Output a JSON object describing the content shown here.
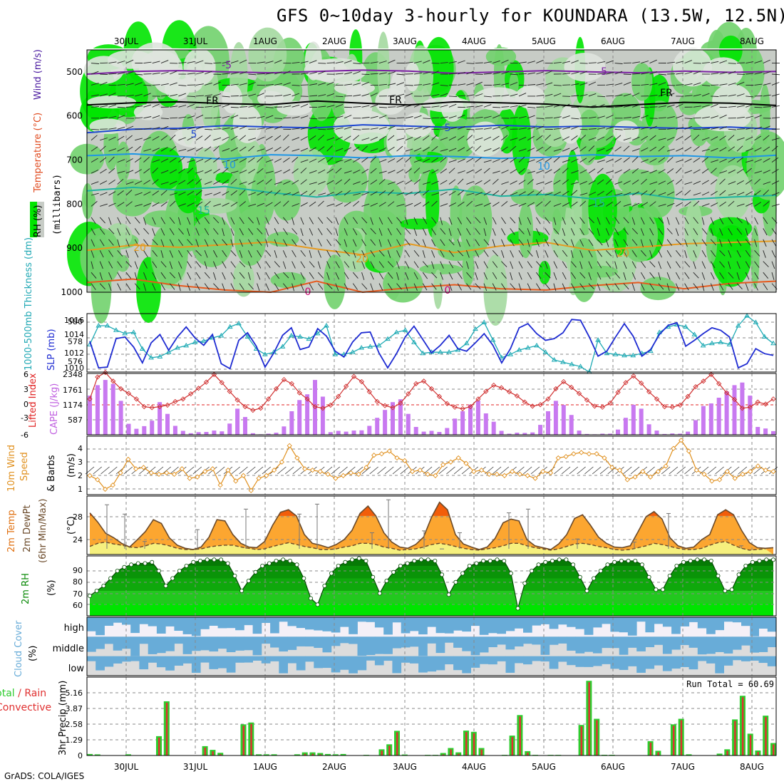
{
  "title": "GFS 0~10day 3-hourly for KOUNDARA (13.5W, 12.5N)",
  "footer": "GrADS: COLA/IGES",
  "chart_data": {
    "type": "meteogram",
    "dates": [
      "30JUL",
      "31JUL",
      "1AUG",
      "2AUG",
      "3AUG",
      "4AUG",
      "5AUG",
      "6AUG",
      "7AUG",
      "8AUG"
    ],
    "panels": [
      {
        "id": "upper",
        "type": "heatmap",
        "ylabels": [
          "RH (%)",
          "Temperature (°C)",
          "Wind (m/s)",
          "(millibars)"
        ],
        "ylim": [
          1000,
          450
        ],
        "yticks": [
          500,
          600,
          700,
          800,
          900,
          1000
        ],
        "contour_labels": [
          "-5",
          "FR",
          "5",
          "10",
          "15",
          "20",
          "0",
          "-5",
          "FR",
          "5",
          "10",
          "15",
          "20",
          "FR",
          "5",
          "10",
          "15",
          "20",
          "0"
        ],
        "contours": [
          {
            "label": "-5",
            "color": "#7b1fa2",
            "p": [
              505,
              499,
              497,
              500,
              502,
              499,
              496,
              498,
              503,
              500,
              497,
              500,
              502,
              498,
              501,
              499
            ]
          },
          {
            "label": "FR",
            "color": "#000000",
            "p": [
              575,
              570,
              568,
              572,
              574,
              566,
              571,
              575,
              568,
              570,
              573,
              580,
              574,
              569,
              571,
              576
            ]
          },
          {
            "label": "5",
            "color": "#1e46d2",
            "p": [
              638,
              630,
              628,
              622,
              625,
              627,
              620,
              623,
              626,
              621,
              625,
              623,
              626,
              628,
              625,
              630
            ]
          },
          {
            "label": "10",
            "color": "#1e96e6",
            "p": [
              690,
              686,
              692,
              698,
              688,
              690,
              695,
              690,
              692,
              696,
              694,
              688,
              692,
              690,
              695,
              689
            ]
          },
          {
            "label": "15",
            "color": "#1eb4a0",
            "p": [
              770,
              762,
              768,
              760,
              774,
              784,
              772,
              776,
              766,
              782,
              778,
              788,
              775,
              790,
              784,
              780
            ]
          },
          {
            "label": "20",
            "color": "#e69a1e",
            "p": [
              905,
              893,
              898,
              892,
              886,
              902,
              915,
              890,
              910,
              895,
              887,
              905,
              898,
              890,
              887,
              884
            ]
          },
          {
            "label": "0",
            "color": "#e65a1e",
            "p": [
              978,
              970,
              985,
              995,
              1000,
              975,
              1000,
              990,
              983,
              992,
              995,
              985,
              978,
              992,
              980,
              975
            ]
          }
        ]
      },
      {
        "id": "slp",
        "type": "line",
        "ylabels": [
          "1000-500mb Thickness (dm)",
          "SLP (mb)"
        ],
        "left_ticks": [
          "576",
          "578",
          "580"
        ],
        "right_ticks": [
          "1010",
          "1012",
          "1014",
          "1016"
        ],
        "series": [
          {
            "name": "SLP (mb)",
            "color": "#1e2bd2",
            "values": [
              1013.5,
              1010.3,
              1010.4,
              1013.8,
              1014.0,
              1012.8,
              1010.9,
              1013.3,
              1014.3,
              1012.4,
              1014.0,
              1015.2,
              1013.9,
              1013.0,
              1014.3,
              1010.8,
              1010.2,
              1013.6,
              1014.5,
              1012.9,
              1010.4,
              1012.1,
              1014.2,
              1015.1,
              1012.5,
              1012.8,
              1015.0,
              1014.1,
              1012.3,
              1011.6,
              1013.4,
              1014.5,
              1014.6,
              1012.1,
              1010.3,
              1012.0,
              1014.0,
              1015.3,
              1013.7,
              1012.1,
              1013.0,
              1014.2,
              1012.6,
              1012.3,
              1013.3,
              1014.4,
              1013.0,
              1010.9,
              1012.6,
              1015.1,
              1015.6,
              1014.4,
              1013.6,
              1013.8,
              1014.5,
              1016.1,
              1016.0,
              1014.0,
              1011.7,
              1012.3,
              1014.0,
              1015.6,
              1014.1,
              1011.7,
              1012.5,
              1014.3,
              1015.4,
              1015.7,
              1012.9,
              1013.6,
              1014.4,
              1015.1,
              1014.8,
              1014.0,
              1010.3,
              1010.8,
              1012.6,
              1012.0,
              1011.8
            ]
          },
          {
            "name": "1000-500mb Thickness (dm)",
            "color": "#1eaab4",
            "marker": "triangle",
            "values": [
              578.0,
              579.7,
              579.7,
              579.3,
              579.0,
              579.1,
              577.6,
              576.8,
              576.9,
              577.3,
              577.7,
              577.9,
              578.2,
              578.3,
              578.6,
              578.8,
              579.6,
              579.9,
              578.7,
              577.6,
              577.1,
              577.3,
              577.8,
              578.8,
              578.7,
              578.5,
              579.0,
              579.7,
              577.1,
              577.1,
              577.3,
              577.7,
              577.8,
              577.9,
              578.5,
              579.1,
              579.3,
              578.2,
              577.2,
              577.3,
              577.3,
              577.3,
              577.5,
              578.1,
              579.4,
              580.0,
              578.4,
              576.8,
              577.1,
              577.5,
              577.7,
              577.9,
              577.3,
              576.6,
              576.4,
              576.2,
              576.0,
              575.5,
              578.4,
              577.2,
              577.1,
              577.0,
              577.0,
              577.2,
              577.4,
              579.1,
              579.6,
              579.8,
              579.6,
              578.9,
              577.9,
              578.1,
              578.2,
              578.0,
              579.7,
              580.6,
              580.0,
              578.7,
              578.1
            ]
          }
        ]
      },
      {
        "id": "cape",
        "type": "bar+line",
        "ylabels": [
          "Lifted Index",
          "CAPE (J/kg)"
        ],
        "left_ticks": [
          "-6",
          "-3",
          "0",
          "3",
          "6"
        ],
        "right_ticks": [
          "587",
          "1174",
          "1761",
          "2348"
        ],
        "bars_cape": [
          1500,
          1900,
          2100,
          1950,
          1300,
          420,
          230,
          330,
          540,
          1250,
          800,
          340,
          150,
          60,
          100,
          110,
          160,
          130,
          430,
          1000,
          680,
          60,
          20,
          40,
          80,
          320,
          900,
          1330,
          1550,
          2100,
          1460,
          100,
          150,
          120,
          160,
          170,
          340,
          650,
          950,
          1250,
          1360,
          800,
          300,
          120,
          150,
          110,
          260,
          620,
          900,
          1150,
          1310,
          820,
          500,
          150,
          40,
          80,
          70,
          90,
          380,
          900,
          1300,
          1140,
          760,
          160,
          30,
          20,
          40,
          40,
          200,
          650,
          1150,
          1000,
          400,
          160,
          30,
          50,
          40,
          120,
          560,
          1100,
          1200,
          1420,
          1660,
          1900,
          2000,
          1500,
          300,
          240,
          140
        ],
        "line_li": [
          -1.0,
          -5.3,
          -6.2,
          -4.5,
          -3.0,
          -2.1,
          -1.0,
          0.5,
          0.7,
          0.5,
          0.2,
          -0.5,
          -1.0,
          -2.0,
          -3.1,
          -4.3,
          -5.8,
          -4.2,
          -2.5,
          -0.8,
          0.5,
          1.2,
          0.8,
          -1.0,
          -3.0,
          -4.8,
          -4.0,
          -2.2,
          -1.0,
          0.5,
          0.8,
          0.2,
          -1.5,
          -3.5,
          -5.4,
          -4.4,
          -2.4,
          -0.5,
          0.3,
          0.7,
          -0.2,
          -2.0,
          -4.0,
          -4.5,
          -3.0,
          -1.5,
          -0.1,
          0.6,
          0.9,
          0.5,
          -1.0,
          -2.5,
          -3.7,
          -3.2,
          -2.4,
          -1.6,
          -0.4,
          0.4,
          0.1,
          -1.0,
          -3.0,
          -4.4,
          -3.3,
          -2.1,
          -0.8,
          0.4,
          0.6,
          -0.2,
          -2.3,
          -4.2,
          -5.5,
          -4.1,
          -2.4,
          -1.0,
          0.5,
          0.6,
          0.2,
          -1.5,
          -3.4,
          -4.5,
          -5.8,
          -4.0,
          -2.2,
          -0.9,
          0.8,
          0.6,
          -0.4,
          0.0,
          -1.0
        ]
      },
      {
        "id": "wind",
        "type": "line",
        "ylabels": [
          "10m Wind",
          "Speed",
          "& Barbs",
          "(m/s)"
        ],
        "left_ticks": [
          "1",
          "2",
          "3",
          "4"
        ],
        "values": [
          2.0,
          1.7,
          1.0,
          1.3,
          2.2,
          3.2,
          2.5,
          2.6,
          2.2,
          2.1,
          2.2,
          2.1,
          2.5,
          1.8,
          1.9,
          2.3,
          2.5,
          1.3,
          2.4,
          1.6,
          2.0,
          0.9,
          1.8,
          2.0,
          2.4,
          3.0,
          4.2,
          3.3,
          2.5,
          2.4,
          2.3,
          2.1,
          1.8,
          2.0,
          2.2,
          2.1,
          2.6,
          3.5,
          3.6,
          3.8,
          3.3,
          3.1,
          2.3,
          2.4,
          2.1,
          2.0,
          2.8,
          3.0,
          3.3,
          2.9,
          2.3,
          2.4,
          2.1,
          2.1,
          2.0,
          2.3,
          2.1,
          2.0,
          1.8,
          2.3,
          2.2,
          3.3,
          3.4,
          3.6,
          3.7,
          3.6,
          3.6,
          3.3,
          2.6,
          2.4,
          1.7,
          1.9,
          2.3,
          1.9,
          2.3,
          2.7,
          4.0,
          4.6,
          3.8,
          2.4,
          2.1,
          1.6,
          1.7,
          2.3,
          1.8,
          2.1,
          2.3,
          2.7,
          2.4,
          2.3
        ]
      },
      {
        "id": "temp",
        "type": "area",
        "ylabels": [
          "2m Temp",
          "2m DewPt",
          "(6hr Min/Max)",
          "(°C)"
        ],
        "left_ticks": [
          "24",
          "28"
        ],
        "temp": [
          28.5,
          27.0,
          25.2,
          24.5,
          23.6,
          23.0,
          24.2,
          25.5,
          27.4,
          26.8,
          24.5,
          23.3,
          22.8,
          22.6,
          23.0,
          24.6,
          27.4,
          27.2,
          25.0,
          23.6,
          23.0,
          22.9,
          23.9,
          26.5,
          28.6,
          29.0,
          28.0,
          25.0,
          23.6,
          23.3,
          22.9,
          23.4,
          24.2,
          25.7,
          28.4,
          29.6,
          28.0,
          25.3,
          23.8,
          23.0,
          22.8,
          23.4,
          24.6,
          27.8,
          30.2,
          29.0,
          25.0,
          23.5,
          23.0,
          22.6,
          23.0,
          24.4,
          26.9,
          27.5,
          27.2,
          24.2,
          23.2,
          22.9,
          22.6,
          23.5,
          25.0,
          27.6,
          28.2,
          26.5,
          24.6,
          23.6,
          23.0,
          22.9,
          23.2,
          25.5,
          27.9,
          28.7,
          27.5,
          24.5,
          23.2,
          22.8,
          23.0,
          24.2,
          25.0,
          28.2,
          29.0,
          28.2,
          25.7,
          23.7,
          22.9,
          22.8,
          22.9
        ],
        "dewpoint": [
          23.1,
          23.6,
          23.8,
          23.5,
          23.3,
          23.0,
          22.9,
          23.2,
          23.6,
          23.5,
          23.2,
          22.8,
          22.6,
          22.6,
          22.7,
          23.0,
          23.2,
          23.3,
          23.3,
          23.0,
          22.8,
          22.6,
          22.7,
          23.1,
          23.4,
          23.7,
          23.4,
          23.1,
          22.9,
          22.6,
          22.6,
          22.7,
          23.0,
          23.2,
          23.6,
          23.6,
          23.4,
          23.0,
          22.8,
          22.5,
          22.6,
          22.7,
          23.0,
          23.4,
          23.6,
          23.4,
          23.1,
          22.8,
          22.6,
          22.5,
          22.7,
          22.9,
          23.2,
          23.6,
          23.6,
          23.2,
          22.9,
          22.7,
          22.5,
          22.7,
          23.1,
          23.5,
          23.6,
          23.4,
          23.1,
          22.9,
          22.6,
          22.5,
          22.6,
          22.9,
          23.2,
          23.6,
          23.4,
          23.1,
          22.8,
          22.6,
          22.6,
          22.8,
          23.3,
          23.7,
          23.9,
          23.3,
          22.8,
          22.5,
          22.6,
          22.7
        ],
        "minmax_ticks": [
          29.8,
          28.3,
          23.9,
          25.8,
          29.1,
          28.3,
          29.9,
          25.3,
          30.6,
          25.6,
          22.7,
          25.3,
          28.5,
          29.1,
          24.3,
          23.8,
          28.4,
          23.2
        ]
      },
      {
        "id": "rh",
        "type": "area",
        "ylabels": [
          "2m RH",
          "(%)"
        ],
        "left_ticks": [
          "60",
          "70",
          "80",
          "90"
        ],
        "values": [
          68,
          72,
          76,
          82,
          88,
          91,
          93,
          94,
          94,
          95,
          88,
          76,
          82,
          88,
          92,
          95,
          96,
          97,
          97,
          97,
          94,
          84,
          72,
          80,
          87,
          92,
          94,
          96,
          97,
          96,
          93,
          82,
          66,
          61,
          76,
          86,
          92,
          95,
          97,
          98,
          96,
          83,
          70,
          80,
          87,
          92,
          94,
          96,
          97,
          97,
          96,
          85,
          69,
          79,
          86,
          92,
          94,
          96,
          96,
          97,
          96,
          86,
          58,
          78,
          88,
          93,
          95,
          96,
          97,
          97,
          93,
          83,
          72,
          82,
          88,
          93,
          95,
          96,
          96,
          96,
          93,
          83,
          73,
          73,
          84,
          92,
          95,
          96,
          97,
          97,
          96,
          84,
          72,
          73,
          85,
          92,
          95,
          96,
          97,
          97
        ]
      },
      {
        "id": "cloud",
        "type": "bar",
        "ylabels": [
          "Cloud Cover",
          "(%)"
        ],
        "levels": [
          "high",
          "middle",
          "low"
        ]
      },
      {
        "id": "precip",
        "type": "bar",
        "ylabels": [
          "3hr Precip (mm)"
        ],
        "legend": [
          "Total",
          "Rain",
          "Convective"
        ],
        "left_ticks": [
          "0",
          "1.29",
          "2.58",
          "3.87",
          "5.16"
        ],
        "run_total_label": "Run Total = 60.69",
        "values": [
          0.12,
          0.09,
          0,
          0,
          0,
          0.1,
          0,
          0,
          0,
          1.55,
          4.35,
          0,
          0,
          0,
          0,
          0.75,
          0.45,
          0.22,
          0,
          0,
          2.5,
          2.65,
          0.1,
          0.1,
          0.1,
          0,
          0,
          0.1,
          0.25,
          0.25,
          0.2,
          0.12,
          0.1,
          0.12,
          0,
          0,
          0.05,
          0,
          0.5,
          0.9,
          1.98,
          0.08,
          0,
          0,
          0.05,
          0.05,
          0.2,
          0.6,
          0.25,
          2.0,
          1.9,
          0.6,
          0,
          0,
          0.05,
          1.6,
          3.25,
          0.35,
          0.05,
          0,
          0.05,
          0.05,
          0,
          0,
          2.45,
          6.0,
          2.95,
          0.06,
          0.06,
          0,
          0,
          0,
          0,
          1.15,
          0.38,
          0,
          2.5,
          2.95,
          0.1,
          0,
          0,
          0,
          0.15,
          0.5,
          2.9,
          4.8,
          1.75,
          0.4,
          3.2,
          1.0
        ]
      }
    ]
  }
}
